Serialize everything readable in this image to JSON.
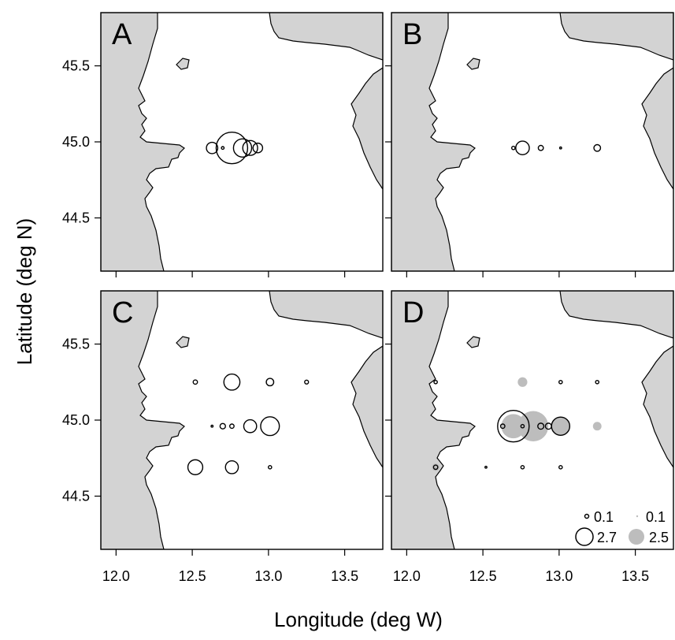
{
  "figure": {
    "xlabel": "Longitude (deg W)",
    "ylabel": "Latitude (deg N)"
  },
  "legend": {
    "labels": [
      "0.1",
      "0.1",
      "2.7",
      "2.5"
    ]
  },
  "colors": {
    "land": "#d3d3d3",
    "open_marker": "#000000",
    "filled_marker": "#bdbdbd"
  },
  "chart_data": [
    {
      "type": "scatter",
      "panel": "A",
      "xlim": [
        11.9,
        13.75
      ],
      "ylim": [
        44.15,
        45.85
      ],
      "x_ticks": [
        "12.0",
        "12.5",
        "13.0",
        "13.5"
      ],
      "y_ticks": [
        "44.5",
        "45.0",
        "45.5"
      ],
      "show_x_tick_labels": false,
      "show_y_tick_labels": true,
      "series": [
        {
          "style": "open",
          "points": [
            {
              "x": 12.63,
              "y": 44.96,
              "v": 0.35
            },
            {
              "x": 12.7,
              "y": 44.96,
              "v": 0.02
            },
            {
              "x": 12.76,
              "y": 44.96,
              "v": 2.7
            },
            {
              "x": 12.83,
              "y": 44.96,
              "v": 0.9
            },
            {
              "x": 12.88,
              "y": 44.96,
              "v": 0.6
            },
            {
              "x": 12.93,
              "y": 44.96,
              "v": 0.25
            }
          ]
        }
      ]
    },
    {
      "type": "scatter",
      "panel": "B",
      "xlim": [
        11.9,
        13.75
      ],
      "ylim": [
        44.15,
        45.85
      ],
      "x_ticks": [
        "12.0",
        "12.5",
        "13.0",
        "13.5"
      ],
      "y_ticks": [
        "44.5",
        "45.0",
        "45.5"
      ],
      "show_x_tick_labels": false,
      "show_y_tick_labels": false,
      "series": [
        {
          "style": "open",
          "points": [
            {
              "x": 12.7,
              "y": 44.96,
              "v": 0.03
            },
            {
              "x": 12.76,
              "y": 44.96,
              "v": 0.5
            },
            {
              "x": 12.88,
              "y": 44.96,
              "v": 0.07
            },
            {
              "x": 13.01,
              "y": 44.96,
              "v": 0.01
            },
            {
              "x": 13.25,
              "y": 44.96,
              "v": 0.12
            }
          ]
        }
      ]
    },
    {
      "type": "scatter",
      "panel": "C",
      "xlim": [
        11.9,
        13.75
      ],
      "ylim": [
        44.15,
        45.85
      ],
      "x_ticks": [
        "12.0",
        "12.5",
        "13.0",
        "13.5"
      ],
      "y_ticks": [
        "44.5",
        "45.0",
        "45.5"
      ],
      "show_x_tick_labels": true,
      "show_y_tick_labels": true,
      "series": [
        {
          "style": "open",
          "points": [
            {
              "x": 12.52,
              "y": 45.25,
              "v": 0.05
            },
            {
              "x": 12.76,
              "y": 45.25,
              "v": 0.7
            },
            {
              "x": 13.01,
              "y": 45.25,
              "v": 0.15
            },
            {
              "x": 13.25,
              "y": 45.25,
              "v": 0.04
            },
            {
              "x": 12.63,
              "y": 44.96,
              "v": 0.01
            },
            {
              "x": 12.7,
              "y": 44.96,
              "v": 0.08
            },
            {
              "x": 12.76,
              "y": 44.96,
              "v": 0.05
            },
            {
              "x": 12.88,
              "y": 44.96,
              "v": 0.45
            },
            {
              "x": 13.01,
              "y": 44.96,
              "v": 0.95
            },
            {
              "x": 12.52,
              "y": 44.69,
              "v": 0.6
            },
            {
              "x": 12.76,
              "y": 44.69,
              "v": 0.45
            },
            {
              "x": 13.01,
              "y": 44.69,
              "v": 0.03
            }
          ]
        }
      ]
    },
    {
      "type": "scatter",
      "panel": "D",
      "xlim": [
        11.9,
        13.75
      ],
      "ylim": [
        44.15,
        45.85
      ],
      "x_ticks": [
        "12.0",
        "12.5",
        "13.0",
        "13.5"
      ],
      "y_ticks": [
        "44.5",
        "45.0",
        "45.5"
      ],
      "show_x_tick_labels": true,
      "show_y_tick_labels": false,
      "series": [
        {
          "style": "filled",
          "points": [
            {
              "x": 12.76,
              "y": 45.25,
              "v": 0.25
            },
            {
              "x": 12.7,
              "y": 44.96,
              "v": 1.6
            },
            {
              "x": 12.83,
              "y": 44.96,
              "v": 2.5
            },
            {
              "x": 13.01,
              "y": 44.96,
              "v": 0.9
            },
            {
              "x": 13.25,
              "y": 44.96,
              "v": 0.2
            },
            {
              "x": 12.19,
              "y": 44.69,
              "v": 0.15
            }
          ]
        },
        {
          "style": "open",
          "points": [
            {
              "x": 12.19,
              "y": 45.25,
              "v": 0.03
            },
            {
              "x": 13.01,
              "y": 45.25,
              "v": 0.03
            },
            {
              "x": 13.25,
              "y": 45.25,
              "v": 0.03
            },
            {
              "x": 12.7,
              "y": 44.96,
              "v": 2.7
            },
            {
              "x": 12.63,
              "y": 44.96,
              "v": 0.05
            },
            {
              "x": 12.76,
              "y": 44.96,
              "v": 0.03
            },
            {
              "x": 12.88,
              "y": 44.96,
              "v": 0.1
            },
            {
              "x": 12.93,
              "y": 44.96,
              "v": 0.1
            },
            {
              "x": 13.01,
              "y": 44.96,
              "v": 0.9
            },
            {
              "x": 12.19,
              "y": 44.69,
              "v": 0.05
            },
            {
              "x": 12.52,
              "y": 44.69,
              "v": 0.01
            },
            {
              "x": 12.76,
              "y": 44.69,
              "v": 0.03
            },
            {
              "x": 13.01,
              "y": 44.69,
              "v": 0.03
            }
          ]
        }
      ]
    }
  ]
}
